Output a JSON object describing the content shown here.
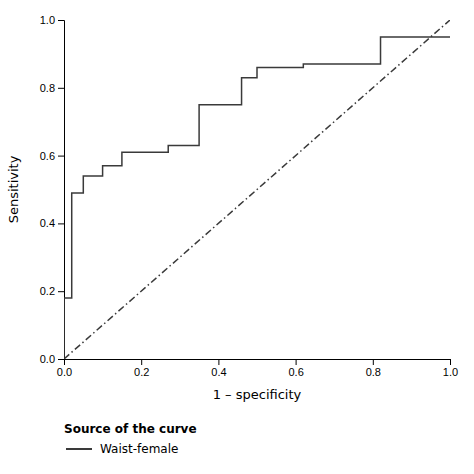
{
  "chart_data": {
    "type": "line",
    "xlabel": "1 – specificity",
    "ylabel": "Sensitivity",
    "legend_title": "Source of the curve",
    "legend": "bottom",
    "grid": false,
    "xlim": [
      0.0,
      1.0
    ],
    "ylim": [
      0.0,
      1.0
    ],
    "xticks": [
      {
        "value": 0.0,
        "label": "0.0"
      },
      0.2,
      0.4,
      0.6,
      0.8,
      {
        "value": 1.0,
        "label": "1.0"
      }
    ],
    "yticks": [
      {
        "value": 0.0,
        "label": "0.0"
      },
      0.2,
      0.4,
      0.6,
      0.8,
      {
        "value": 1.0,
        "label": "1.0"
      }
    ],
    "series": [
      {
        "name": "Waist-female",
        "color": "#3a3a3a",
        "line_style": "solid",
        "x": [
          0.0,
          0.0,
          0.02,
          0.02,
          0.05,
          0.05,
          0.1,
          0.1,
          0.15,
          0.15,
          0.27,
          0.27,
          0.35,
          0.35,
          0.46,
          0.46,
          0.5,
          0.5,
          0.62,
          0.62,
          0.82,
          0.82,
          1.0
        ],
        "values": [
          0.0,
          0.18,
          0.18,
          0.49,
          0.49,
          0.54,
          0.54,
          0.57,
          0.57,
          0.61,
          0.61,
          0.63,
          0.63,
          0.75,
          0.75,
          0.83,
          0.83,
          0.86,
          0.86,
          0.87,
          0.87,
          0.95,
          0.95
        ]
      },
      {
        "color": "#3a3a3a",
        "line_style": "dashdot",
        "x": [
          0.0,
          1.0
        ],
        "values": [
          0.0,
          1.0
        ]
      }
    ]
  }
}
